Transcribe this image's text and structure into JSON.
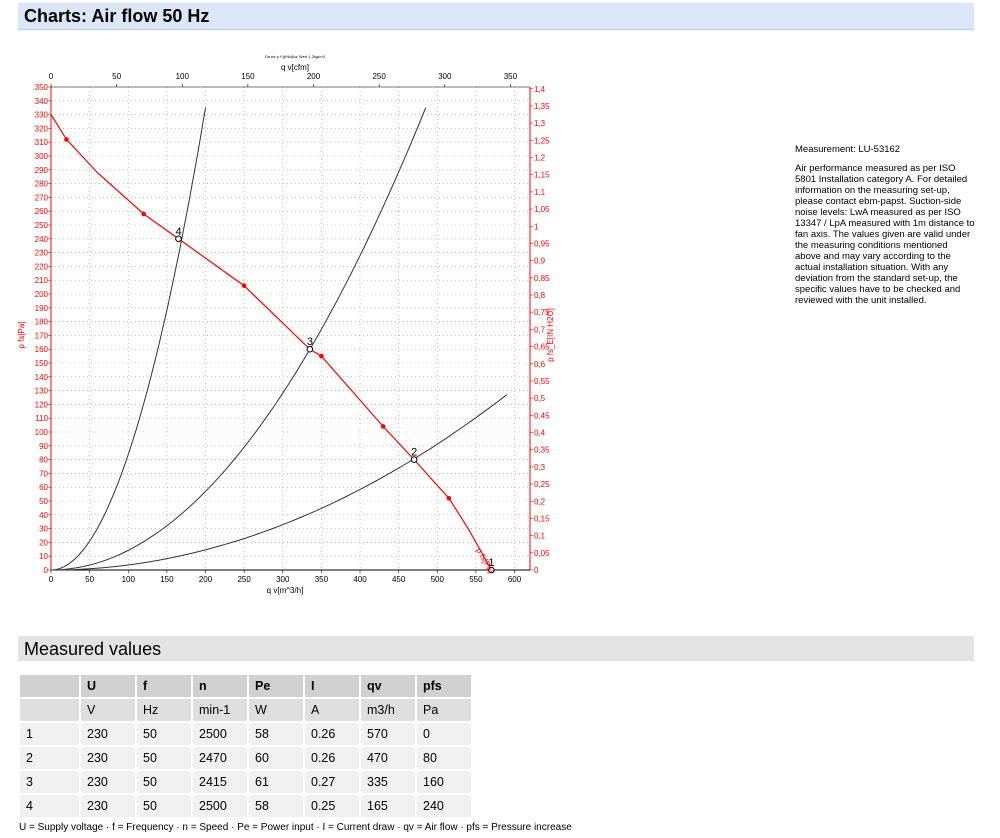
{
  "header": {
    "title": "Charts: Air flow 50 Hz"
  },
  "chart_data": {
    "type": "line",
    "small_caption": "Druck p f @Ni@or Wert 1.2kg/m3",
    "xlabel_bottom": "q v[m^3/h]",
    "xlabel_top": "q v[cfm]",
    "ylabel_left": "p fs[Pa]",
    "ylabel_right": "p fs_E[IN H2O]",
    "curve_label": "p fs[Pa]",
    "xlim": [
      0,
      620
    ],
    "ylim": [
      0,
      350
    ],
    "x_ticks": [
      0,
      50,
      100,
      150,
      200,
      250,
      300,
      350,
      400,
      450,
      500,
      550,
      600
    ],
    "x_ticks_top": [
      0,
      50,
      100,
      150,
      200,
      250,
      300,
      350
    ],
    "y_ticks": [
      0,
      10,
      20,
      30,
      40,
      50,
      60,
      70,
      80,
      90,
      100,
      110,
      120,
      130,
      140,
      150,
      160,
      170,
      180,
      190,
      200,
      210,
      220,
      230,
      240,
      250,
      260,
      270,
      280,
      290,
      300,
      310,
      320,
      330,
      340,
      350
    ],
    "y_ticks_right": [
      "0",
      "0,05",
      "0,1",
      "0,15",
      "0,2",
      "0,25",
      "0,3",
      "0,35",
      "0,4",
      "0,45",
      "0,5",
      "0,55",
      "0,6",
      "0,65",
      "0,7",
      "0,75",
      "0,8",
      "0,85",
      "0,9",
      "0,95",
      "1",
      "1,05",
      "1,1",
      "1,15",
      "1,2",
      "1,25",
      "1,3",
      "1,35",
      "1,4"
    ],
    "grid": true,
    "fan_curve": {
      "x": [
        0,
        20,
        60,
        120,
        165,
        250,
        335,
        350,
        430,
        470,
        515,
        540,
        570
      ],
      "y": [
        330,
        312,
        288,
        258,
        240,
        206,
        160,
        155,
        104,
        80,
        52,
        30,
        0
      ],
      "markers": [
        [
          20,
          312
        ],
        [
          120,
          258
        ],
        [
          250,
          206
        ],
        [
          350,
          155
        ],
        [
          430,
          104
        ],
        [
          515,
          52
        ]
      ],
      "color": "#ff0000"
    },
    "system_curves": [
      {
        "x_end": 200,
        "y_end": 335
      },
      {
        "x_end": 485,
        "y_end": 335
      },
      {
        "x_end": 590,
        "y_end": 127
      }
    ],
    "operating_points": [
      {
        "label": "1",
        "x": 570,
        "y": 0
      },
      {
        "label": "2",
        "x": 470,
        "y": 80
      },
      {
        "label": "3",
        "x": 335,
        "y": 160
      },
      {
        "label": "4",
        "x": 165,
        "y": 240
      }
    ]
  },
  "description": {
    "measurement": "Measurement: LU-53162",
    "text": "Air performance measured as per ISO 5801 Installation category A. For detailed information on the measuring set-up, please contact ebm-papst. Suction-side noise levels: LwA measured as per ISO 13347 / LpA measured with 1m distance to fan axis. The values given are valid under the measuring conditions mentioned above and may vary according to the actual installation situation. With any deviation from the standard set-up, the specific values have to be checked and reviewed with the unit installed."
  },
  "measured": {
    "title": "Measured values",
    "headers": [
      "",
      "U",
      "f",
      "n",
      "Pe",
      "I",
      "qv",
      "pfs"
    ],
    "units": [
      "",
      "V",
      "Hz",
      "min-1",
      "W",
      "A",
      "m3/h",
      "Pa"
    ],
    "rows": [
      [
        "1",
        "230",
        "50",
        "2500",
        "58",
        "0.26",
        "570",
        "0"
      ],
      [
        "2",
        "230",
        "50",
        "2470",
        "60",
        "0.26",
        "470",
        "80"
      ],
      [
        "3",
        "230",
        "50",
        "2415",
        "61",
        "0.27",
        "335",
        "160"
      ],
      [
        "4",
        "230",
        "50",
        "2500",
        "58",
        "0.25",
        "165",
        "240"
      ]
    ]
  },
  "legend": "U = Supply voltage · f = Frequency · n = Speed · Pe = Power input · I = Current draw · qv = Air flow · pfs = Pressure increase"
}
